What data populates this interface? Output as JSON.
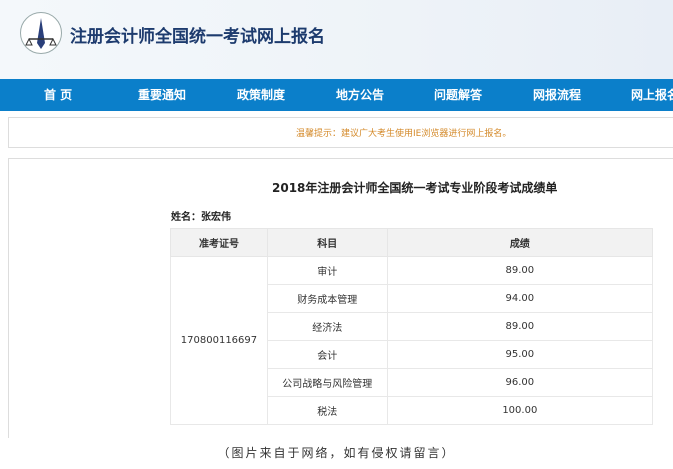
{
  "header": {
    "title": "注册会计师全国统一考试网上报名",
    "logo": "cpa-seal-logo"
  },
  "nav": [
    "首 页",
    "重要通知",
    "政策制度",
    "地方公告",
    "问题解答",
    "网报流程",
    "网上报名"
  ],
  "notice": "温馨提示：建议广大考生使用IE浏览器进行网上报名。",
  "report": {
    "title": "2018年注册会计师全国统一考试专业阶段考试成绩单",
    "name": "姓名：张宏伟",
    "headers": [
      "准考证号",
      "科目",
      "成绩"
    ],
    "exam_id": "170800116697",
    "rows": [
      {
        "subject": "审计",
        "score": "89.00"
      },
      {
        "subject": "财务成本管理",
        "score": "94.00"
      },
      {
        "subject": "经济法",
        "score": "89.00"
      },
      {
        "subject": "会计",
        "score": "95.00"
      },
      {
        "subject": "公司战略与风险管理",
        "score": "96.00"
      },
      {
        "subject": "税法",
        "score": "100.00"
      }
    ]
  },
  "caption": "（图片来自于网络，如有侵权请留言）",
  "colors": {
    "nav": "#0b7fca",
    "title": "#1d3b6e",
    "notice": "#d48a2a"
  }
}
